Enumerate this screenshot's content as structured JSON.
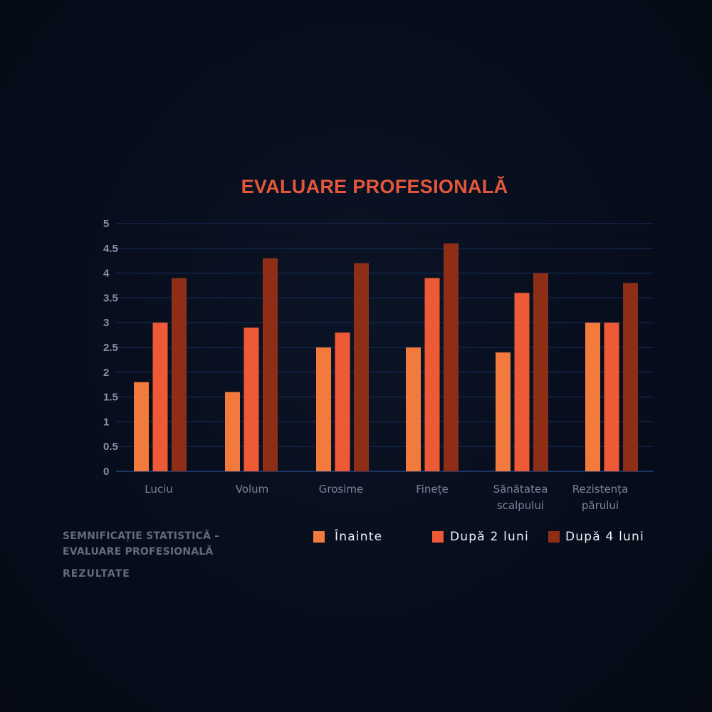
{
  "chart_data": {
    "type": "bar",
    "title": "EVALUARE PROFESIONALĂ",
    "xlabel": "",
    "ylabel": "",
    "ylim": [
      0,
      5
    ],
    "grid": true,
    "legend_position": "bottom-right",
    "y_ticks": [
      "0",
      "0.5",
      "1",
      "1.5",
      "2",
      "2.5",
      "3",
      "3.5",
      "4",
      "4.5",
      "5"
    ],
    "categories": [
      [
        "Luciu"
      ],
      [
        "Volum"
      ],
      [
        "Grosime"
      ],
      [
        "Finețe"
      ],
      [
        "Sănătatea",
        "scalpului"
      ],
      [
        "Rezistența",
        "părului"
      ]
    ],
    "series": [
      {
        "name": "Înainte",
        "color": "#f27a3d",
        "values": [
          1.8,
          1.6,
          2.5,
          2.5,
          2.4,
          3.0
        ]
      },
      {
        "name": "După 2 luni",
        "color": "#ee5a36",
        "values": [
          3.0,
          2.9,
          2.8,
          3.9,
          3.6,
          3.0
        ]
      },
      {
        "name": "După 4 luni",
        "color": "#8f2e17",
        "values": [
          3.9,
          4.3,
          4.2,
          4.6,
          4.0,
          3.8
        ]
      }
    ]
  },
  "notes": {
    "line1": "SEMNIFICAȚIE STATISTICĂ –",
    "line2": "EVALUARE PROFESIONALĂ",
    "line3": "REZULTATE"
  },
  "colors": {
    "title": "#e4573a",
    "background": "#070d1c",
    "gridline": "#16305c"
  }
}
